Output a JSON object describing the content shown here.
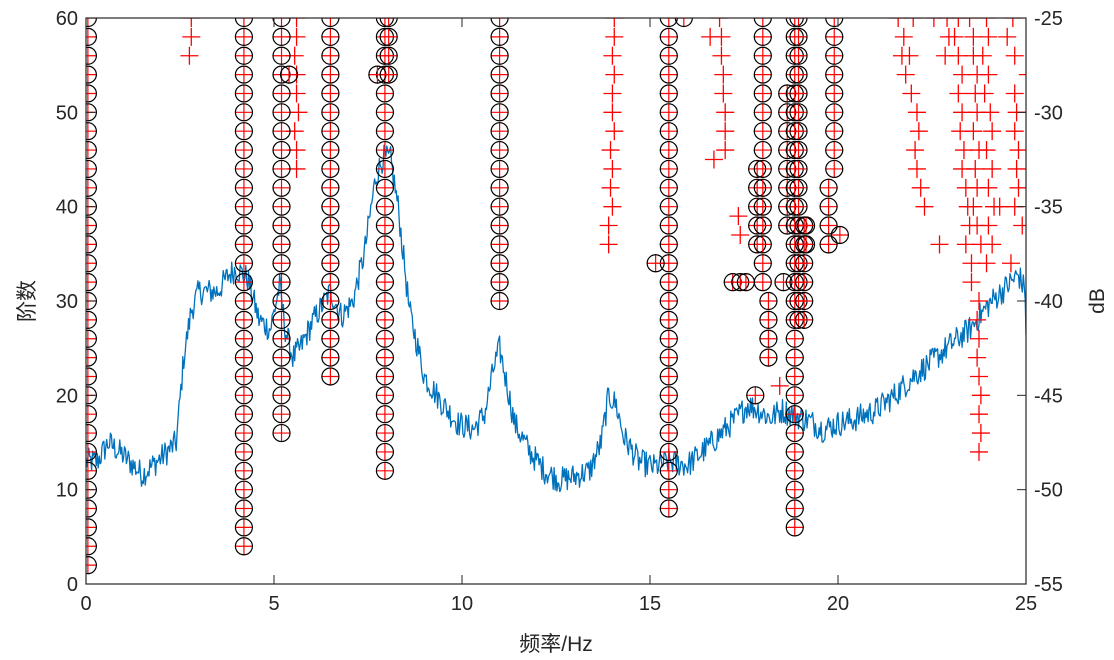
{
  "chart_data": {
    "type": "scatter",
    "title": "",
    "xlabel": "频率/Hz",
    "ylabel": "阶数",
    "y2label": "dB",
    "xlim": [
      0,
      25
    ],
    "ylim": [
      0,
      60
    ],
    "y2lim": [
      -55,
      -25
    ],
    "xticks": [
      0,
      5,
      10,
      15,
      20,
      25
    ],
    "yticks": [
      0,
      10,
      20,
      30,
      40,
      50,
      60
    ],
    "y2ticks": [
      -55,
      -50,
      -45,
      -40,
      -35,
      -30,
      -25
    ],
    "grid": false,
    "legend": "none",
    "colors": {
      "circles": "#000000",
      "crosses": "#ff0000",
      "spectrum": "#0072bd",
      "axes": "#262626"
    },
    "series": [
      {
        "marker": "circle-cross",
        "columns": [
          {
            "x": 0.05,
            "orders": [
              2,
              60
            ]
          },
          {
            "x": 4.2,
            "orders": [
              4,
              60
            ]
          },
          {
            "x": 5.2,
            "orders": [
              16,
              60
            ]
          },
          {
            "x": 5.4,
            "orders": [
              54,
              54
            ]
          },
          {
            "x": 6.5,
            "orders": [
              22,
              60
            ]
          },
          {
            "x": 7.95,
            "orders": [
              12,
              60
            ]
          },
          {
            "x": 7.75,
            "orders": [
              54,
              54
            ]
          },
          {
            "x": 8.05,
            "orders": [
              54,
              60
            ]
          },
          {
            "x": 11.0,
            "orders": [
              30,
              60
            ]
          },
          {
            "x": 15.5,
            "orders": [
              8,
              60
            ]
          },
          {
            "x": 15.15,
            "orders": [
              34,
              34
            ]
          },
          {
            "x": 15.9,
            "orders": [
              60,
              60
            ]
          },
          {
            "x": 17.2,
            "orders": [
              32,
              32
            ]
          },
          {
            "x": 17.4,
            "orders": [
              32,
              32
            ]
          },
          {
            "x": 17.55,
            "orders": [
              32,
              32
            ]
          },
          {
            "x": 17.8,
            "orders": [
              20,
              20
            ]
          },
          {
            "x": 17.85,
            "orders": [
              36,
              44
            ]
          },
          {
            "x": 18.0,
            "orders": [
              32,
              60
            ]
          },
          {
            "x": 18.15,
            "orders": [
              24,
              30
            ]
          },
          {
            "x": 18.55,
            "orders": [
              32,
              32
            ]
          },
          {
            "x": 18.65,
            "orders": [
              38,
              52
            ]
          },
          {
            "x": 18.85,
            "orders": [
              6,
              60
            ]
          },
          {
            "x": 18.95,
            "orders": [
              28,
              60
            ]
          },
          {
            "x": 19.1,
            "orders": [
              28,
              38
            ]
          },
          {
            "x": 19.15,
            "orders": [
              36,
              38
            ]
          },
          {
            "x": 19.75,
            "orders": [
              36,
              42
            ]
          },
          {
            "x": 19.9,
            "orders": [
              44,
              60
            ]
          },
          {
            "x": 20.05,
            "orders": [
              37,
              37
            ]
          }
        ]
      },
      {
        "marker": "cross",
        "points": [
          [
            2.8,
            60
          ],
          [
            2.8,
            58
          ],
          [
            2.75,
            56
          ],
          [
            5.6,
            60
          ],
          [
            5.6,
            58
          ],
          [
            5.55,
            56
          ],
          [
            5.6,
            54
          ],
          [
            5.6,
            52
          ],
          [
            5.65,
            50
          ],
          [
            5.55,
            48
          ],
          [
            5.6,
            46
          ],
          [
            5.6,
            44
          ],
          [
            14.05,
            60
          ],
          [
            14.05,
            58
          ],
          [
            14.0,
            56
          ],
          [
            14.05,
            54
          ],
          [
            14.0,
            52
          ],
          [
            14.0,
            50
          ],
          [
            14.05,
            48
          ],
          [
            13.95,
            46
          ],
          [
            14.0,
            44
          ],
          [
            13.95,
            42
          ],
          [
            14.0,
            40
          ],
          [
            13.9,
            38
          ],
          [
            13.9,
            36
          ],
          [
            16.6,
            58
          ],
          [
            16.7,
            45
          ],
          [
            16.85,
            60
          ],
          [
            16.9,
            58
          ],
          [
            16.9,
            56
          ],
          [
            16.95,
            54
          ],
          [
            16.95,
            52
          ],
          [
            17.0,
            50
          ],
          [
            17.0,
            48
          ],
          [
            17.0,
            46
          ],
          [
            17.4,
            37
          ],
          [
            17.35,
            39
          ],
          [
            18.45,
            21
          ],
          [
            21.6,
            60
          ],
          [
            21.75,
            58
          ],
          [
            21.7,
            56
          ],
          [
            21.8,
            54
          ],
          [
            21.9,
            56
          ],
          [
            22.0,
            60
          ],
          [
            21.95,
            52
          ],
          [
            22.1,
            50
          ],
          [
            22.15,
            48
          ],
          [
            22.05,
            46
          ],
          [
            22.1,
            44
          ],
          [
            22.2,
            42
          ],
          [
            22.3,
            40
          ],
          [
            22.55,
            60
          ],
          [
            22.7,
            36
          ],
          [
            22.9,
            60
          ],
          [
            22.95,
            58
          ],
          [
            22.85,
            56
          ],
          [
            23.2,
            60
          ],
          [
            23.1,
            58
          ],
          [
            23.2,
            56
          ],
          [
            23.3,
            54
          ],
          [
            23.2,
            52
          ],
          [
            23.3,
            50
          ],
          [
            23.25,
            48
          ],
          [
            23.35,
            46
          ],
          [
            23.3,
            44
          ],
          [
            23.4,
            42
          ],
          [
            23.45,
            40
          ],
          [
            23.5,
            38
          ],
          [
            23.4,
            36
          ],
          [
            23.55,
            34
          ],
          [
            23.5,
            60
          ],
          [
            23.6,
            58
          ],
          [
            23.6,
            56
          ],
          [
            23.7,
            54
          ],
          [
            23.65,
            52
          ],
          [
            23.7,
            50
          ],
          [
            23.6,
            48
          ],
          [
            23.75,
            46
          ],
          [
            23.65,
            44
          ],
          [
            23.7,
            42
          ],
          [
            23.6,
            40
          ],
          [
            23.7,
            38
          ],
          [
            23.8,
            36
          ],
          [
            23.55,
            32
          ],
          [
            23.75,
            30
          ],
          [
            23.7,
            28
          ],
          [
            23.75,
            26
          ],
          [
            23.7,
            24
          ],
          [
            23.75,
            22
          ],
          [
            23.8,
            20
          ],
          [
            23.75,
            18
          ],
          [
            23.8,
            16
          ],
          [
            23.75,
            14
          ],
          [
            23.95,
            60
          ],
          [
            24.0,
            58
          ],
          [
            23.85,
            56
          ],
          [
            24.0,
            54
          ],
          [
            23.9,
            52
          ],
          [
            24.05,
            50
          ],
          [
            24.1,
            48
          ],
          [
            23.95,
            46
          ],
          [
            24.1,
            44
          ],
          [
            24.0,
            42
          ],
          [
            24.15,
            40
          ],
          [
            24.0,
            38
          ],
          [
            24.1,
            36
          ],
          [
            23.95,
            34
          ],
          [
            24.3,
            40
          ],
          [
            24.5,
            58
          ],
          [
            24.65,
            60
          ],
          [
            24.7,
            56
          ],
          [
            24.7,
            52
          ],
          [
            24.75,
            50
          ],
          [
            24.7,
            48
          ],
          [
            24.8,
            46
          ],
          [
            24.75,
            44
          ],
          [
            24.8,
            42
          ],
          [
            24.7,
            40
          ],
          [
            24.6,
            34
          ],
          [
            25.05,
            54
          ],
          [
            24.9,
            38
          ]
        ]
      },
      {
        "axis": "right",
        "marker": "line",
        "knots": [
          [
            0.0,
            -48.5
          ],
          [
            0.3,
            -48.5
          ],
          [
            0.6,
            -47.5
          ],
          [
            1.0,
            -48.2
          ],
          [
            1.5,
            -49.2
          ],
          [
            2.0,
            -48.3
          ],
          [
            2.4,
            -47.5
          ],
          [
            2.6,
            -43
          ],
          [
            2.8,
            -40.5
          ],
          [
            3.0,
            -39.5
          ],
          [
            3.5,
            -39.5
          ],
          [
            3.8,
            -38.6
          ],
          [
            4.0,
            -38.3
          ],
          [
            4.3,
            -38.8
          ],
          [
            4.6,
            -41
          ],
          [
            4.9,
            -41.5
          ],
          [
            5.15,
            -39.2
          ],
          [
            5.3,
            -41.5
          ],
          [
            5.5,
            -43
          ],
          [
            5.7,
            -42.5
          ],
          [
            6.0,
            -41.2
          ],
          [
            6.2,
            -40.5
          ],
          [
            6.5,
            -39.5
          ],
          [
            6.8,
            -40.8
          ],
          [
            7.1,
            -40
          ],
          [
            7.4,
            -37.5
          ],
          [
            7.7,
            -33.5
          ],
          [
            7.9,
            -32.4
          ],
          [
            8.1,
            -32.5
          ],
          [
            8.3,
            -35
          ],
          [
            8.6,
            -40.5
          ],
          [
            9.0,
            -44
          ],
          [
            9.5,
            -45.5
          ],
          [
            9.9,
            -46.5
          ],
          [
            10.3,
            -46.8
          ],
          [
            10.6,
            -46
          ],
          [
            10.85,
            -43.5
          ],
          [
            11.0,
            -42.5
          ],
          [
            11.15,
            -44
          ],
          [
            11.4,
            -46.5
          ],
          [
            11.8,
            -48
          ],
          [
            12.2,
            -49
          ],
          [
            12.6,
            -49.5
          ],
          [
            13.0,
            -49.3
          ],
          [
            13.4,
            -49
          ],
          [
            13.7,
            -47.5
          ],
          [
            13.9,
            -45
          ],
          [
            14.1,
            -45.5
          ],
          [
            14.3,
            -47.2
          ],
          [
            14.7,
            -48.5
          ],
          [
            15.1,
            -48.8
          ],
          [
            15.5,
            -48.5
          ],
          [
            16.0,
            -48.7
          ],
          [
            16.5,
            -47.8
          ],
          [
            17.0,
            -46.8
          ],
          [
            17.3,
            -46.2
          ],
          [
            17.6,
            -45.5
          ],
          [
            17.9,
            -45.8
          ],
          [
            18.2,
            -46.2
          ],
          [
            18.5,
            -45.8
          ],
          [
            18.8,
            -46.0
          ],
          [
            19.2,
            -46.3
          ],
          [
            19.6,
            -46.8
          ],
          [
            20.0,
            -46.5
          ],
          [
            20.4,
            -46.3
          ],
          [
            21.0,
            -45.8
          ],
          [
            21.5,
            -45
          ],
          [
            22.0,
            -44
          ],
          [
            22.5,
            -43.2
          ],
          [
            23.0,
            -42.3
          ],
          [
            23.5,
            -41.5
          ],
          [
            24.0,
            -40.2
          ],
          [
            24.5,
            -39.2
          ],
          [
            24.8,
            -38.6
          ],
          [
            24.98,
            -39.5
          ],
          [
            25.0,
            -41.8
          ]
        ]
      }
    ]
  }
}
